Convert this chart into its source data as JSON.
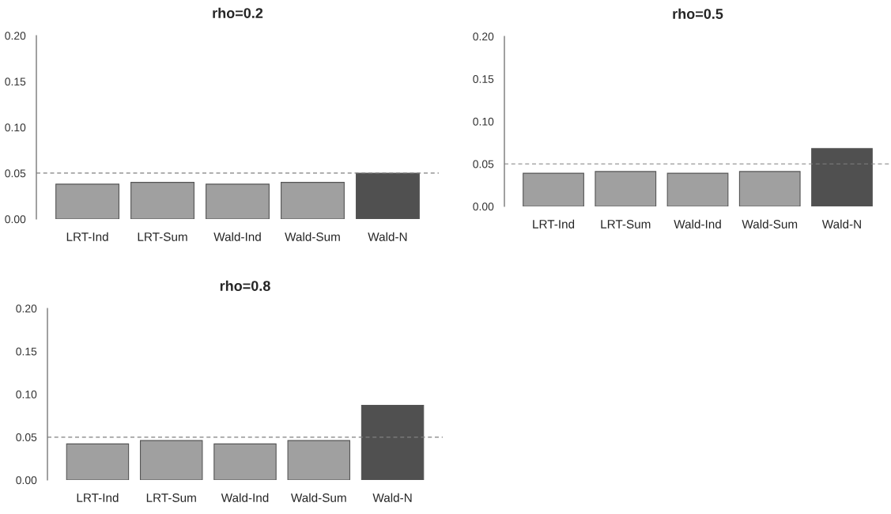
{
  "chart_data": [
    {
      "type": "bar",
      "title": "rho=0.2",
      "categories": [
        "LRT-Ind",
        "LRT-Sum",
        "Wald-Ind",
        "Wald-Sum",
        "Wald-N"
      ],
      "values": [
        0.038,
        0.04,
        0.038,
        0.04,
        0.05
      ],
      "colors": [
        "#a0a0a0",
        "#a0a0a0",
        "#a0a0a0",
        "#a0a0a0",
        "#505050"
      ],
      "ylim": [
        0,
        0.2
      ],
      "yticks": [
        {
          "value": 0,
          "label": "0.00"
        },
        {
          "value": 0.05,
          "label": "0.05"
        },
        {
          "value": 0.1,
          "label": "0.10"
        },
        {
          "value": 0.15,
          "label": "0.15"
        },
        {
          "value": 0.2,
          "label": "0.20"
        }
      ],
      "ref_lines": [
        {
          "axis": "y",
          "value": 0.05,
          "color": "#808080",
          "line_style": "dashed"
        }
      ]
    },
    {
      "type": "bar",
      "title": "rho=0.5",
      "categories": [
        "LRT-Ind",
        "LRT-Sum",
        "Wald-Ind",
        "Wald-Sum",
        "Wald-N"
      ],
      "values": [
        0.039,
        0.041,
        0.039,
        0.041,
        0.068
      ],
      "colors": [
        "#a0a0a0",
        "#a0a0a0",
        "#a0a0a0",
        "#a0a0a0",
        "#505050"
      ],
      "ylim": [
        0,
        0.2
      ],
      "yticks": [
        {
          "value": 0,
          "label": "0.00"
        },
        {
          "value": 0.05,
          "label": "0.05"
        },
        {
          "value": 0.1,
          "label": "0.10"
        },
        {
          "value": 0.15,
          "label": "0.15"
        },
        {
          "value": 0.2,
          "label": "0.20"
        }
      ],
      "ref_lines": [
        {
          "axis": "y",
          "value": 0.05,
          "color": "#808080",
          "line_style": "dashed"
        }
      ]
    },
    {
      "type": "bar",
      "title": "rho=0.8",
      "categories": [
        "LRT-Ind",
        "LRT-Sum",
        "Wald-Ind",
        "Wald-Sum",
        "Wald-N"
      ],
      "values": [
        0.042,
        0.046,
        0.042,
        0.046,
        0.087
      ],
      "colors": [
        "#a0a0a0",
        "#a0a0a0",
        "#a0a0a0",
        "#a0a0a0",
        "#505050"
      ],
      "ylim": [
        0,
        0.2
      ],
      "yticks": [
        {
          "value": 0,
          "label": "0.00"
        },
        {
          "value": 0.05,
          "label": "0.05"
        },
        {
          "value": 0.1,
          "label": "0.10"
        },
        {
          "value": 0.15,
          "label": "0.15"
        },
        {
          "value": 0.2,
          "label": "0.20"
        }
      ],
      "ref_lines": [
        {
          "axis": "y",
          "value": 0.05,
          "color": "#808080",
          "line_style": "dashed"
        }
      ]
    }
  ]
}
